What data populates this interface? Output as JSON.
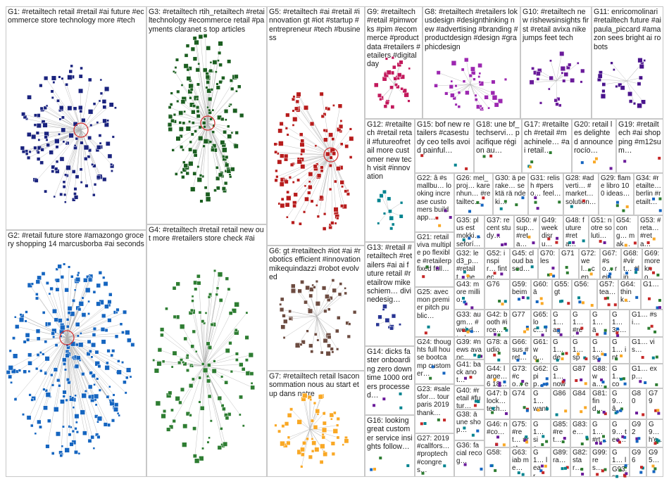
{
  "groups": [
    {
      "id": "G1",
      "text": "G1: #retailtech retail #retail #ai future #ecommerce store technology more #tech",
      "color": "#1a237e"
    },
    {
      "id": "G2",
      "text": "G2: #retail future store #amazongo grocery shopping 14 marcusborba #ai seconds",
      "color": "#1565c0"
    },
    {
      "id": "G3",
      "text": "G3: #retailtech rtih_retailtech #retailtechnology #ecommerce retail #payments claranet s top articles",
      "color": "#1b5e20"
    },
    {
      "id": "G4",
      "text": "G4: #retailtech #retail retail new out more #retailers store check #ai",
      "color": "#2e7d32"
    },
    {
      "id": "G5",
      "text": "G5: #retailtech #ai #retail #innovation gt #iot #startup #entrepreneur #tech #business",
      "color": "#b71c1c"
    },
    {
      "id": "G6",
      "text": "G6: gt #retailtech #iot #ai #robotics efficient #innovation mikequindazzi #robot evolved",
      "color": "#6d4c41"
    },
    {
      "id": "G7",
      "text": "G7: #retailtech retail lsaconsommation nous au start et up dans notre",
      "color": "#f9a825"
    },
    {
      "id": "G8",
      "text": "G8: #retailtech #retailers lokusdesign #designthinking new #advertising #branding #productdesign #design #graphicdesign",
      "color": "#9c27b0"
    },
    {
      "id": "G9",
      "text": "G9: #retailtech #retail #pimworks #pim #ecommerce #productdata #retailers #etailers #digital day",
      "color": "#c2185b"
    },
    {
      "id": "G10",
      "text": "G10: #retailtech new rishewsinsights first #retail avixa nike jumps feet tech",
      "color": "#6a1b9a"
    },
    {
      "id": "G11",
      "text": "G11: enricomolinari #retailtech future #ai paula_piccard #amazon sees bright ai robots",
      "color": "#4a148c"
    },
    {
      "id": "G12",
      "text": "G12: #retailtech #retail retail #futureofretail more customer new tech visit #innovation",
      "color": "#00838f"
    },
    {
      "id": "G13",
      "text": "G13: #retail #retailtech #retailers #ai ai future retail #retailrow mikeschiem… divinedesig…",
      "color": "#283593"
    },
    {
      "id": "G14",
      "text": "G14: dicks faster onboarding zero downtime 1000 orders processed…",
      "color": "#555555"
    },
    {
      "id": "G15",
      "text": "G15: bof new retailers #casestudy ceo tells avoid painful…",
      "color": "#555555"
    },
    {
      "id": "G16",
      "text": "G16: looking great customer service insights follow…",
      "color": "#555555"
    },
    {
      "id": "G17",
      "text": "G17: #retailtech #retail #machinele… #ai retail…",
      "color": "#555555"
    },
    {
      "id": "G18",
      "text": "G18: une bf_techservi… pacifique région au…",
      "color": "#555555"
    },
    {
      "id": "G19",
      "text": "G19: #retailtech #ai shopping #m12sum…",
      "color": "#555555"
    },
    {
      "id": "G20",
      "text": "G20: retail les delighted announce rocío…",
      "color": "#555555"
    },
    {
      "id": "G21",
      "text": "G21: retailviva multiple po flexible #retailerp fixed füll…",
      "color": "#555555"
    },
    {
      "id": "G22",
      "text": "G22: â #smallbu… looking increase customers build app…",
      "color": "#555555"
    },
    {
      "id": "G23",
      "text": "G23: #salesfor… tour paris 2019 thank…",
      "color": "#555555"
    },
    {
      "id": "G24",
      "text": "G24: thoughts full house bootcamp customer…",
      "color": "#555555"
    },
    {
      "id": "G25",
      "text": "G25: avec mon premier pitch public…",
      "color": "#555555"
    },
    {
      "id": "G26",
      "text": "G26: mel_proj… karenhun… #retailtec…",
      "color": "#555555"
    },
    {
      "id": "G27",
      "text": "G27: 2019 #callfors… #proptech #congres…",
      "color": "#555555"
    },
    {
      "id": "G28",
      "text": "G28: #adverti… #market… solution…",
      "color": "#555555"
    },
    {
      "id": "G29",
      "text": "G29: flame libro 100 ideas…",
      "color": "#555555"
    },
    {
      "id": "G30",
      "text": "G30: ä perake… sektä rä ndeki…",
      "color": "#555555"
    },
    {
      "id": "G31",
      "text": "G31: relish #perso… feel…",
      "color": "#555555"
    },
    {
      "id": "G32",
      "text": "G32: led3_p… #retailt… new…",
      "color": "#555555"
    },
    {
      "id": "G33",
      "text": "G33: augm… #webd… today…",
      "color": "#555555"
    },
    {
      "id": "G34",
      "text": "G34: #retailte… berlin #retailt…",
      "color": "#555555"
    },
    {
      "id": "G35",
      "text": "G35: plus est mokki… seforí…",
      "color": "#555555"
    },
    {
      "id": "G36",
      "text": "G36: facial recog…",
      "color": "#555555"
    },
    {
      "id": "G37",
      "text": "G37: recent study…",
      "color": "#555555"
    },
    {
      "id": "G38",
      "text": "G38: ä une shop…",
      "color": "#555555"
    },
    {
      "id": "G39",
      "text": "G39: #news avanc…",
      "color": "#555555"
    },
    {
      "id": "G40",
      "text": "G40: #retail #futur…",
      "color": "#555555"
    },
    {
      "id": "G41",
      "text": "G41: back anot…",
      "color": "#555555"
    },
    {
      "id": "G42",
      "text": "G42: booth #irce…",
      "color": "#555555"
    },
    {
      "id": "G43",
      "text": "G43: more millio…",
      "color": "#555555"
    },
    {
      "id": "G44",
      "text": "G44: large… 6 18…",
      "color": "#555555"
    },
    {
      "id": "G45",
      "text": "G45: cloud based…",
      "color": "#555555"
    },
    {
      "id": "G46",
      "text": "G46: n #co…",
      "color": "#555555"
    },
    {
      "id": "G47",
      "text": "G47: block… tech…",
      "color": "#555555"
    },
    {
      "id": "G48",
      "text": "G48: future #reta…",
      "color": "#555555"
    },
    {
      "id": "G49",
      "text": "G49: week disru…",
      "color": "#555555"
    },
    {
      "id": "G50",
      "text": "G50: #sup… #reta…",
      "color": "#555555"
    },
    {
      "id": "G51",
      "text": "G51: notre soluti…",
      "color": "#555555"
    },
    {
      "id": "G52",
      "text": "G52: inspir… fintec…",
      "color": "#555555"
    },
    {
      "id": "G53",
      "text": "G53: #reta… #reta…",
      "color": "#555555"
    },
    {
      "id": "G54",
      "text": "G54: cong… mak…",
      "color": "#555555"
    },
    {
      "id": "G55",
      "text": "G55: gt",
      "color": "#555555"
    },
    {
      "id": "G56",
      "text": "G56:",
      "color": "#555555"
    },
    {
      "id": "G57",
      "text": "G57: tea…",
      "color": "#555555"
    },
    {
      "id": "G58",
      "text": "G58:",
      "color": "#555555"
    },
    {
      "id": "G59",
      "text": "G59: beim",
      "color": "#555555"
    },
    {
      "id": "G60",
      "text": "G60: ä",
      "color": "#555555"
    },
    {
      "id": "G61",
      "text": "G61: wo… sell…",
      "color": "#555555"
    },
    {
      "id": "G62",
      "text": "G62: pip… reta…",
      "color": "#555555"
    },
    {
      "id": "G63",
      "text": "G63: iab me…",
      "color": "#555555"
    },
    {
      "id": "G64",
      "text": "G64: think…",
      "color": "#555555"
    },
    {
      "id": "G65",
      "text": "G65: loc… insi…",
      "color": "#555555"
    },
    {
      "id": "G66",
      "text": "G66: sus #ret…",
      "color": "#555555"
    },
    {
      "id": "G67",
      "text": "G67: #so… rejoi…",
      "color": "#555555"
    },
    {
      "id": "G68",
      "text": "G68: #virt… #lin…",
      "color": "#555555"
    },
    {
      "id": "G69",
      "text": "G69: more kno…",
      "color": "#555555"
    },
    {
      "id": "G70",
      "text": "G70: les",
      "color": "#555555"
    },
    {
      "id": "G71",
      "text": "G71",
      "color": "#555555"
    },
    {
      "id": "G72",
      "text": "G72: wel… cen…",
      "color": "#555555"
    },
    {
      "id": "G73",
      "text": "G73: #co… elec…",
      "color": "#555555"
    },
    {
      "id": "G74",
      "text": "G74",
      "color": "#555555"
    },
    {
      "id": "G75",
      "text": "G75: #ret… #ret…",
      "color": "#555555"
    },
    {
      "id": "G76",
      "text": "G76",
      "color": "#555555"
    },
    {
      "id": "G77",
      "text": "G77",
      "color": "#555555"
    },
    {
      "id": "G78",
      "text": "G78: audio",
      "color": "#555555"
    },
    {
      "id": "G79",
      "text": "G79",
      "color": "#555555"
    },
    {
      "id": "G80",
      "text": "G80",
      "color": "#555555"
    },
    {
      "id": "G81",
      "text": "G81: find…",
      "color": "#555555"
    },
    {
      "id": "G82",
      "text": "G82: star…",
      "color": "#555555"
    },
    {
      "id": "G83",
      "text": "G83: e…",
      "color": "#555555"
    },
    {
      "id": "G84",
      "text": "G84",
      "color": "#555555"
    },
    {
      "id": "G85",
      "text": "G85: #ret…",
      "color": "#555555"
    },
    {
      "id": "G86",
      "text": "G86",
      "color": "#555555"
    },
    {
      "id": "G87",
      "text": "G87",
      "color": "#555555"
    },
    {
      "id": "G88",
      "text": "G88: wa…",
      "color": "#555555"
    },
    {
      "id": "G89",
      "text": "G89: ra…",
      "color": "#555555"
    },
    {
      "id": "G90",
      "text": "G9… â…",
      "color": "#555555"
    },
    {
      "id": "G91",
      "text": "G9… tec…",
      "color": "#555555"
    },
    {
      "id": "G92",
      "text": "G92",
      "color": "#555555"
    },
    {
      "id": "G93",
      "text": "G93: s",
      "color": "#555555"
    },
    {
      "id": "G94",
      "text": "G9… h'e…",
      "color": "#555555"
    },
    {
      "id": "G95",
      "text": "G95…",
      "color": "#555555"
    },
    {
      "id": "G96",
      "text": "G96",
      "color": "#555555"
    },
    {
      "id": "G97",
      "text": "G1… 3e…",
      "color": "#555555"
    },
    {
      "id": "G98",
      "text": "G1… #si…",
      "color": "#555555"
    },
    {
      "id": "G99",
      "text": "G99: res…",
      "color": "#555555"
    },
    {
      "id": "G100",
      "text": "G1… agr…",
      "color": "#555555"
    },
    {
      "id": "G101",
      "text": "G1… dec…",
      "color": "#555555"
    },
    {
      "id": "G102",
      "text": "G1… spa…",
      "color": "#555555"
    },
    {
      "id": "G103",
      "text": "G1… scr…",
      "color": "#555555"
    },
    {
      "id": "G104",
      "text": "G1… inte…",
      "color": "#555555"
    },
    {
      "id": "G105",
      "text": "G1… vis…",
      "color": "#555555"
    },
    {
      "id": "G106",
      "text": "G1… now",
      "color": "#555555"
    },
    {
      "id": "G107",
      "text": "G1… con…",
      "color": "#555555"
    },
    {
      "id": "G108",
      "text": "G1… exp…",
      "color": "#555555"
    },
    {
      "id": "G109",
      "text": "G1… #ret…",
      "color": "#555555"
    },
    {
      "id": "G110",
      "text": "G1… want",
      "color": "#555555"
    },
    {
      "id": "G111",
      "text": "G1… sie…",
      "color": "#555555"
    },
    {
      "id": "G112",
      "text": "G1… #rt…",
      "color": "#555555"
    },
    {
      "id": "G113",
      "text": "G1… loo…",
      "color": "#555555"
    },
    {
      "id": "G114",
      "text": "G1… lear…",
      "color": "#555555"
    },
    {
      "id": "G115",
      "text": "G1… ä",
      "color": "#555555"
    },
    {
      "id": "G116",
      "text": "G1…",
      "color": "#555555"
    }
  ]
}
